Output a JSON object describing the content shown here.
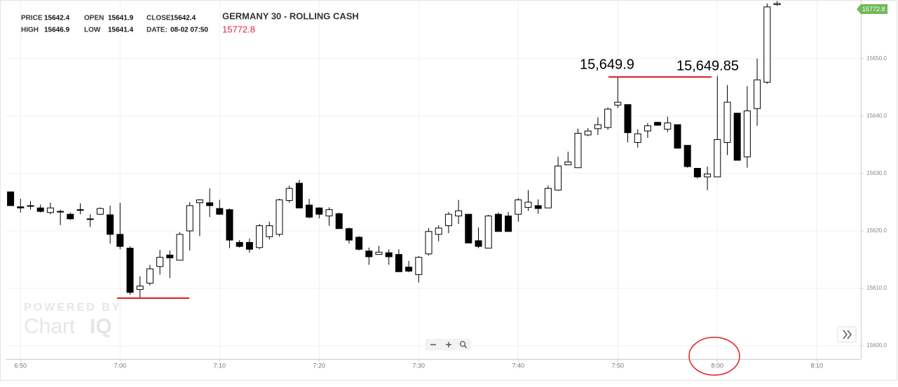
{
  "header": {
    "fields": [
      {
        "label": "PRICE",
        "value": "15642.4"
      },
      {
        "label": "OPEN",
        "value": "15641.9"
      },
      {
        "label": "CLOSE",
        "value": "15642.4"
      },
      {
        "label": "HIGH",
        "value": "15646.9"
      },
      {
        "label": "LOW",
        "value": "15641.4"
      },
      {
        "label": "DATE:",
        "value": "08-02 07:50"
      }
    ],
    "title": "GERMANY 30 - ROLLING CASH",
    "last_price": "15772.8"
  },
  "watermark": {
    "line1": "POWERED BY",
    "line2": "Chart",
    "line3": "IQ"
  },
  "chart_data": {
    "type": "candlestick",
    "categories": [
      null,
      "6:50",
      null,
      null,
      null,
      null,
      null,
      null,
      null,
      null,
      null,
      "7:00",
      null,
      null,
      null,
      null,
      null,
      null,
      null,
      null,
      null,
      "7:10",
      null,
      null,
      null,
      null,
      null,
      null,
      null,
      null,
      null,
      "7:20",
      null,
      null,
      null,
      null,
      null,
      null,
      null,
      null,
      null,
      "7:30",
      null,
      null,
      null,
      null,
      null,
      null,
      null,
      null,
      null,
      "7:40",
      null,
      null,
      null,
      null,
      null,
      null,
      null,
      null,
      null,
      "7:50",
      null,
      null,
      null,
      null,
      null,
      null,
      null,
      null,
      null,
      "8:00",
      null,
      null,
      null,
      null,
      null,
      null,
      null,
      null,
      null,
      "8:10",
      null,
      null,
      null,
      null
    ],
    "open": [
      15626.8,
      15624.2,
      15624.4,
      15624.0,
      15623.2,
      15623.4,
      15622.9,
      15623.7,
      15622.1,
      15622.9,
      15622.8,
      15619.4,
      15617.0,
      15609.8,
      15610.9,
      15613.8,
      15615.8,
      15614.9,
      15620.0,
      15624.9,
      15624.9,
      15623.9,
      15623.7,
      15618.0,
      15618.0,
      15617.1,
      15619.0,
      15619.4,
      15625.3,
      15628.3,
      15624.5,
      15624.0,
      15622.6,
      15623.0,
      15620.4,
      15618.9,
      15616.5,
      15615.9,
      15616.2,
      15615.9,
      15613.7,
      15612.4,
      15616.0,
      15619.4,
      15620.9,
      15622.6,
      15622.9,
      15618.3,
      15617.0,
      15622.9,
      15622.6,
      15622.9,
      15624.1,
      15624.4,
      15624.0,
      15627.1,
      15631.5,
      15631.0,
      15636.7,
      15637.8,
      15638.0,
      15641.9,
      15642.0,
      15635.4,
      15637.4,
      15638.9,
      15637.7,
      15638.5,
      15634.9,
      15630.9,
      15629.4,
      15629.4,
      15635.4,
      15640.5,
      15632.9,
      15641.3,
      15645.9,
      15659.4,
      null,
      null,
      null,
      null,
      null,
      null,
      null,
      null
    ],
    "high": [
      15626.8,
      15625.6,
      15625.2,
      15624.6,
      15624.9,
      15623.7,
      15623.2,
      15624.8,
      15622.9,
      15624.1,
      15624.4,
      15624.9,
      15617.3,
      15612.1,
      15614.1,
      15616.7,
      15616.6,
      15619.8,
      15625.0,
      15625.5,
      15627.4,
      15625.4,
      15623.9,
      15618.4,
      15618.7,
      15621.2,
      15621.6,
      15625.6,
      15627.9,
      15628.9,
      15625.6,
      15624.1,
      15624.1,
      15623.2,
      15620.6,
      15619.1,
      15617.1,
      15617.4,
      15616.8,
      15616.8,
      15614.8,
      15615.6,
      15620.5,
      15621.0,
      15623.3,
      15625.4,
      15622.9,
      15620.6,
      15622.8,
      15623.2,
      15623.3,
      15625.7,
      15627.1,
      15625.5,
      15627.9,
      15632.9,
      15633.8,
      15637.8,
      15637.9,
      15639.8,
      15641.5,
      15646.9,
      15642.0,
      15637.7,
      15638.8,
      15639.0,
      15639.9,
      15638.5,
      15634.9,
      15630.9,
      15631.2,
      15647.0,
      15645.4,
      15640.5,
      15645.2,
      15650.0,
      15659.6,
      15660.0,
      null,
      null,
      null,
      null,
      null,
      null,
      null,
      null
    ],
    "low": [
      15624.4,
      15623.2,
      15623.7,
      15623.2,
      15622.9,
      15621.0,
      15621.9,
      15622.9,
      15620.7,
      15622.8,
      15617.8,
      15616.8,
      15608.9,
      15608.4,
      15610.5,
      15612.4,
      15611.8,
      15614.9,
      15616.6,
      15619.1,
      15622.4,
      15622.8,
      15617.0,
      15617.1,
      15616.2,
      15616.8,
      15618.5,
      15619.0,
      15624.9,
      15624.0,
      15622.2,
      15622.2,
      15620.9,
      15620.4,
      15617.8,
      15616.6,
      15614.1,
      15615.9,
      15614.1,
      15612.9,
      15612.8,
      15611.0,
      15615.7,
      15618.2,
      15619.6,
      15621.2,
      15617.9,
      15617.0,
      15617.0,
      15619.9,
      15619.9,
      15621.6,
      15623.5,
      15623.0,
      15624.0,
      15627.0,
      15631.5,
      15631.0,
      15636.5,
      15636.7,
      15637.6,
      15641.4,
      15635.4,
      15634.5,
      15636.2,
      15638.3,
      15637.2,
      15634.4,
      15631.0,
      15629.1,
      15627.1,
      15629.4,
      15633.2,
      15632.3,
      15631.0,
      15638.3,
      15645.6,
      15659.2,
      null,
      null,
      null,
      null,
      null,
      null,
      null,
      null
    ],
    "close": [
      15624.4,
      15624.0,
      15624.3,
      15623.4,
      15624.0,
      15623.4,
      15622.1,
      15623.6,
      15622.0,
      15623.9,
      15619.4,
      15617.3,
      15609.3,
      15610.4,
      15613.4,
      15615.4,
      15615.3,
      15619.4,
      15624.4,
      15625.4,
      15624.4,
      15622.9,
      15618.4,
      15617.3,
      15616.8,
      15620.9,
      15620.9,
      15625.4,
      15627.4,
      15624.0,
      15622.4,
      15622.9,
      15623.7,
      15620.4,
      15618.4,
      15616.8,
      15615.5,
      15616.3,
      15615.5,
      15612.9,
      15613.0,
      15615.4,
      15619.9,
      15620.5,
      15622.9,
      15623.5,
      15617.9,
      15617.3,
      15622.6,
      15619.9,
      15619.9,
      15625.4,
      15625.0,
      15623.9,
      15627.4,
      15631.3,
      15632.0,
      15637.0,
      15637.4,
      15638.5,
      15641.2,
      15642.4,
      15637.1,
      15636.9,
      15638.3,
      15638.4,
      15638.8,
      15634.4,
      15631.2,
      15629.4,
      15629.9,
      15635.9,
      15642.4,
      15632.3,
      15640.9,
      15646.3,
      15659.0,
      15659.6,
      null,
      null,
      null,
      null,
      null,
      null,
      null,
      null
    ],
    "up_color": "#ffffff",
    "down_color": "#000000",
    "ylim": [
      15597.7,
      15660.2
    ],
    "yticks": [
      {
        "value": 15600,
        "label": "15600.0"
      },
      {
        "value": 15610,
        "label": "15610.0"
      },
      {
        "value": 15620,
        "label": "15620.0"
      },
      {
        "value": 15630,
        "label": "15630.0"
      },
      {
        "value": 15640,
        "label": "15640.0"
      },
      {
        "value": 15650,
        "label": "15650.0"
      }
    ],
    "grid": true,
    "annotations": [
      "15,649.9",
      "15,649.85"
    ]
  }
}
